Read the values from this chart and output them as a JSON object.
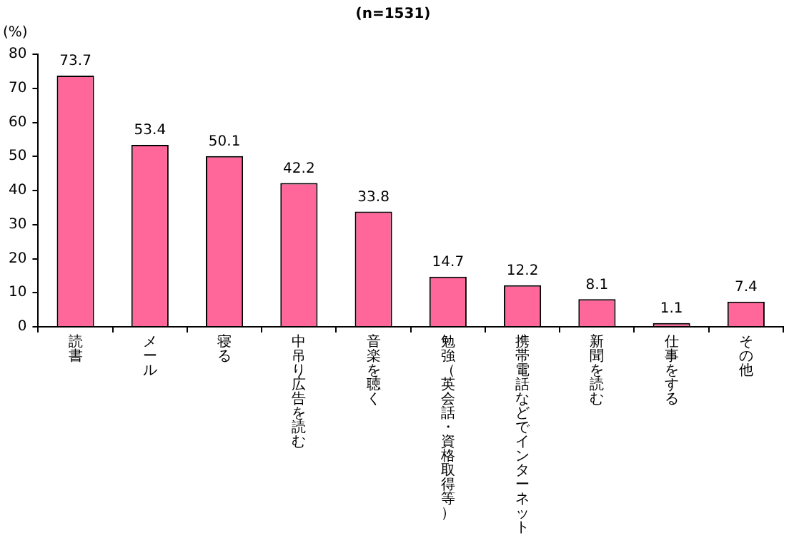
{
  "chart_data": {
    "type": "bar",
    "title": "(n=1531)",
    "ylabel": "(%)",
    "categories": [
      "読書",
      "メール",
      "寝る",
      "中吊り広告を読む",
      "音楽を聴く",
      "勉強（英会話・資格取得等）",
      "携帯電話などでインターネット",
      "新聞を読む",
      "仕事をする",
      "その他"
    ],
    "values": [
      73.7,
      53.4,
      50.1,
      42.2,
      33.8,
      14.7,
      12.2,
      8.1,
      1.1,
      7.4
    ],
    "color": "#ff6699",
    "ylim": [
      0,
      80
    ],
    "yticks": [
      0,
      10,
      20,
      30,
      40,
      50,
      60,
      70,
      80
    ],
    "grid": false,
    "data_labels": true
  }
}
